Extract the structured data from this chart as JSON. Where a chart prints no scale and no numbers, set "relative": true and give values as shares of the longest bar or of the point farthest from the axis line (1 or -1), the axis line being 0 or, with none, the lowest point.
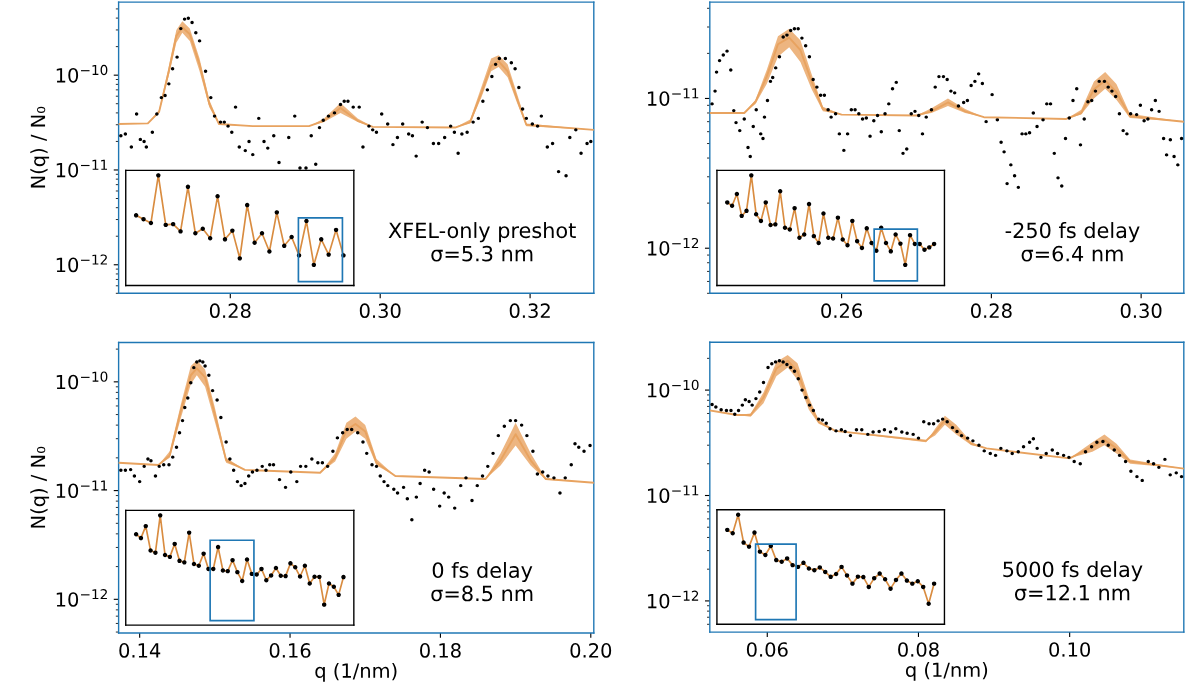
{
  "chart_data": [
    {
      "type": "scatter",
      "ylabel": "N(q) / N₀",
      "log": true,
      "xlim": [
        0.2651,
        0.3285
      ],
      "ylim": [
        5e-13,
        5.9e-10
      ],
      "xticks": [
        0.28,
        {
          "value": 0.3,
          "label": "0.30"
        },
        0.32
      ],
      "yticks": [
        {
          "value": 1e-12,
          "label": "10$^{−12}$"
        },
        {
          "value": 1e-11,
          "label": "10$^{−11}$"
        },
        {
          "value": 1e-10,
          "label": "10$^{−10}$"
        }
      ],
      "annotations": [
        "XFEL-only preshot",
        "σ=5.3 nm"
      ],
      "series": [
        {
          "marker": "circle",
          "color": "#000000",
          "x": [
            0.2654,
            0.266,
            0.2668,
            0.2675,
            0.268,
            0.2685,
            0.2688,
            0.2696,
            0.2702,
            0.2708,
            0.2713,
            0.2718,
            0.2723,
            0.2729,
            0.2734,
            0.2739,
            0.2744,
            0.2749,
            0.2754,
            0.2759,
            0.2767,
            0.2774,
            0.2779,
            0.2787,
            0.2792,
            0.2797,
            0.2802,
            0.2807,
            0.2812,
            0.282,
            0.2825,
            0.283,
            0.2838,
            0.2845,
            0.285,
            0.2858,
            0.2865,
            0.2878,
            0.2886,
            0.2893,
            0.2901,
            0.2908,
            0.2914,
            0.2919,
            0.2924,
            0.2931,
            0.2939,
            0.2947,
            0.2952,
            0.2957,
            0.2964,
            0.2972,
            0.2977,
            0.2985,
            0.299,
            0.2995,
            0.3002,
            0.301,
            0.3017,
            0.3023,
            0.303,
            0.3038,
            0.3043,
            0.3048,
            0.3056,
            0.3063,
            0.3071,
            0.3078,
            0.3086,
            0.3094,
            0.3099,
            0.3104,
            0.3109,
            0.3116,
            0.3124,
            0.3131,
            0.3137,
            0.3143,
            0.3149,
            0.3154,
            0.3159,
            0.3167,
            0.3175,
            0.318,
            0.3185,
            0.319,
            0.3195,
            0.3203,
            0.321,
            0.3215,
            0.3223,
            0.323,
            0.3238,
            0.3248,
            0.3253,
            0.3261,
            0.3268,
            0.3276,
            0.3281
          ],
          "values": [
            2.3e-11,
            2.4e-11,
            1.75e-11,
            3.9e-11,
            2.1e-11,
            2e-11,
            1.75e-11,
            2.5e-11,
            3.9e-11,
            5.8e-11,
            6.1e-11,
            8.1e-11,
            1.17e-10,
            1.55e-10,
            3.1e-10,
            3.9e-10,
            3.98e-10,
            3.6e-10,
            2.8e-10,
            2.3e-10,
            1.1e-10,
            5.8e-11,
            3.7e-11,
            3.2e-11,
            3.2e-11,
            2.9e-11,
            2.5e-11,
            4.6e-11,
            1.75e-11,
            1.6e-11,
            2e-11,
            1.45e-11,
            3.5e-11,
            2e-11,
            1.7e-11,
            2.3e-11,
            1.2e-11,
            2.2e-11,
            3.7e-11,
            1.05e-11,
            1.05e-11,
            2.3e-11,
            1.15e-11,
            2.8e-11,
            3.35e-11,
            3.7e-11,
            4e-11,
            4.9e-11,
            5.3e-11,
            5.3e-11,
            4.6e-11,
            4.6e-11,
            1.75e-11,
            2.9e-11,
            2.65e-11,
            2.5e-11,
            3.9e-11,
            3.05e-11,
            1.85e-11,
            2.2e-11,
            3.05e-11,
            2.4e-11,
            2.3e-11,
            1.4e-11,
            3.2e-11,
            2.8e-11,
            1.9e-11,
            1.9e-11,
            2.2e-11,
            2.9e-11,
            2.5e-11,
            1.5e-11,
            2.4e-11,
            2.5e-11,
            3.2e-11,
            3.5e-11,
            5.3e-11,
            7e-11,
            9.7e-11,
            1.3e-10,
            1.5e-10,
            1.5e-10,
            1.35e-10,
            1.17e-10,
            7.4e-11,
            4.4e-11,
            3.5e-11,
            3.05e-11,
            2.9e-11,
            3.7e-11,
            1.75e-11,
            1.9e-11,
            9.6e-12,
            8.7e-12,
            2.2e-11,
            2.65e-11,
            1.5e-11,
            1.9e-11,
            2e-11
          ]
        },
        {
          "type": "line",
          "color": "#e8a360",
          "x": [
            0.2651,
            0.269,
            0.2705,
            0.2718,
            0.2728,
            0.2736,
            0.2746,
            0.2759,
            0.2772,
            0.2785,
            0.283,
            0.2905,
            0.2925,
            0.2947,
            0.297,
            0.299,
            0.31,
            0.312,
            0.3135,
            0.3148,
            0.3158,
            0.317,
            0.3183,
            0.3195,
            0.3285
          ],
          "values": [
            3.05e-11,
            3.1e-11,
            4.1e-11,
            1.1e-10,
            2.6e-10,
            3.2e-10,
            2.7e-10,
            1.3e-10,
            5e-11,
            3.05e-11,
            2.9e-11,
            2.9e-11,
            3.3e-11,
            4.5e-11,
            3.3e-11,
            2.85e-11,
            2.8e-11,
            3.2e-11,
            6.5e-11,
            1.25e-10,
            1.4e-10,
            1.1e-10,
            5.5e-11,
            3e-11,
            2.65e-11
          ],
          "lower": [
            3.05e-11,
            3.1e-11,
            4e-11,
            1e-10,
            2.2e-10,
            2.8e-10,
            2.3e-10,
            1.1e-10,
            4.6e-11,
            3e-11,
            2.9e-11,
            2.9e-11,
            3.2e-11,
            4e-11,
            3.2e-11,
            2.85e-11,
            2.8e-11,
            3.1e-11,
            5.8e-11,
            1.1e-10,
            1.22e-10,
            9.5e-11,
            5e-11,
            2.9e-11,
            2.65e-11
          ],
          "upper": [
            3.05e-11,
            3.1e-11,
            4.3e-11,
            1.25e-10,
            3e-10,
            3.7e-10,
            3.1e-10,
            1.5e-10,
            5.5e-11,
            3.1e-11,
            2.9e-11,
            2.9e-11,
            3.5e-11,
            5.1e-11,
            3.5e-11,
            2.85e-11,
            2.8e-11,
            3.4e-11,
            7.5e-11,
            1.5e-10,
            1.62e-10,
            1.3e-10,
            6.2e-11,
            3.1e-11,
            2.65e-11
          ]
        }
      ]
    },
    {
      "type": "line",
      "relative": true,
      "tick_labels": false,
      "categories": [
        null,
        null,
        null,
        null,
        null,
        null,
        null,
        null,
        null,
        null,
        null,
        null,
        null,
        null,
        null,
        null,
        null,
        null,
        null,
        null,
        null,
        null,
        null,
        null,
        null,
        null,
        null,
        null,
        null
      ],
      "series": [
        {
          "marker": "circle",
          "color": "#d98c40",
          "values": [
            0.637,
            0.602,
            0.567,
            1,
            0.55,
            0.557,
            0.491,
            0.896,
            0.474,
            0.515,
            0.429,
            0.81,
            0.419,
            0.498,
            0.246,
            0.73,
            0.388,
            0.474,
            0.308,
            0.664,
            0.36,
            0.44,
            0.273,
            0.585,
            0.187,
            0.419,
            0.28,
            0.505,
            0.273
          ]
        }
      ]
    },
    {
      "type": "scatter",
      "log": true,
      "xlim": [
        0.2424,
        0.3057
      ],
      "ylim": [
        5e-13,
        4.4e-11
      ],
      "xticks": [
        0.26,
        0.28,
        {
          "value": 0.3,
          "label": "0.30"
        }
      ],
      "yticks": [
        {
          "value": 1e-12,
          "label": "10$^{−12}$"
        },
        {
          "value": 1e-11,
          "label": "10$^{−11}$"
        }
      ],
      "annotations": [
        "-250 fs delay",
        "σ=6.4 nm"
      ],
      "series": [
        {
          "marker": "circle",
          "color": "#000000",
          "x": [
            0.2427,
            0.2431,
            0.2433,
            0.2437,
            0.2442,
            0.2447,
            0.2452,
            0.2456,
            0.2459,
            0.2464,
            0.247,
            0.2475,
            0.2478,
            0.2482,
            0.2486,
            0.2492,
            0.2495,
            0.2497,
            0.2501,
            0.2505,
            0.2508,
            0.2512,
            0.2517,
            0.2522,
            0.2527,
            0.2532,
            0.2537,
            0.2542,
            0.2547,
            0.2552,
            0.2557,
            0.2562,
            0.2567,
            0.2572,
            0.2577,
            0.2582,
            0.2586,
            0.2592,
            0.2597,
            0.2603,
            0.2608,
            0.2613,
            0.2618,
            0.2623,
            0.2628,
            0.2633,
            0.2638,
            0.2643,
            0.2648,
            0.2653,
            0.2658,
            0.2663,
            0.2668,
            0.2673,
            0.2677,
            0.2682,
            0.2687,
            0.2693,
            0.2698,
            0.2703,
            0.2708,
            0.2713,
            0.272,
            0.2725,
            0.273,
            0.2736,
            0.2741,
            0.2746,
            0.2751,
            0.2756,
            0.2763,
            0.2768,
            0.2773,
            0.2778,
            0.2783,
            0.2788,
            0.2793,
            0.2801,
            0.2808,
            0.2813,
            0.2817,
            0.2821,
            0.2826,
            0.2831,
            0.2836,
            0.2841,
            0.2846,
            0.2851,
            0.2856,
            0.2861,
            0.2869,
            0.2874,
            0.2879,
            0.2884,
            0.2889,
            0.2894,
            0.2899,
            0.2904,
            0.2909,
            0.2914,
            0.2919,
            0.2924,
            0.2929,
            0.2934,
            0.2939,
            0.2944,
            0.2951,
            0.2956,
            0.2961,
            0.2966,
            0.2971,
            0.2976,
            0.2981,
            0.2986,
            0.2994,
            0.2999,
            0.3004,
            0.3009,
            0.3014,
            0.3019,
            0.3024,
            0.303,
            0.3034,
            0.3039,
            0.3044,
            0.3049,
            0.3054
          ],
          "values": [
            9.2e-12,
            1.12e-11,
            1.5e-11,
            1.79e-11,
            1.95e-11,
            2.07e-11,
            1.55e-11,
            8.3e-12,
            6.9e-12,
            6.1e-12,
            7.3e-12,
            4.7e-12,
            4.1e-12,
            6.5e-12,
            8.4e-12,
            5.8e-12,
            5.4e-12,
            7.5e-12,
            9.7e-12,
            1.3e-11,
            1.38e-11,
            1.6e-11,
            1.9e-11,
            2.57e-11,
            2.65e-11,
            2.84e-11,
            2.92e-11,
            2.92e-11,
            2.53e-11,
            2.25e-11,
            1.9e-11,
            1.34e-11,
            1.19e-11,
            1.05e-11,
            1.05e-11,
            8.4e-12,
            7.5e-12,
            7.9e-12,
            5.8e-12,
            4.5e-12,
            5.8e-12,
            8.4e-12,
            8.4e-12,
            7.9e-12,
            7.3e-12,
            7.4e-12,
            5.6e-12,
            7.1e-12,
            7.7e-12,
            6e-12,
            7.9e-12,
            9.2e-12,
            1.16e-11,
            1.28e-11,
            6.1e-12,
            4.3e-12,
            4.6e-12,
            7.9e-12,
            8.2e-12,
            7.7e-12,
            5.8e-12,
            7.5e-12,
            8.4e-12,
            1.19e-11,
            1.4e-11,
            1.4e-11,
            1.34e-11,
            1.12e-11,
            1.09e-11,
            8.9e-12,
            9.4e-12,
            9.7e-12,
            1.22e-11,
            1.3e-11,
            1.46e-11,
            1.26e-11,
            7e-12,
            1.06e-11,
            7.2e-12,
            5.1e-12,
            4.4e-12,
            2.7e-12,
            3.6e-12,
            3.05e-12,
            2.55e-12,
            5.8e-12,
            5.8e-12,
            5.9e-12,
            8e-12,
            6.5e-12,
            7.2e-12,
            9.2e-12,
            9.2e-12,
            4.3e-12,
            2.95e-12,
            2.6e-12,
            5.4e-12,
            7.4e-12,
            9.7e-12,
            1.16e-11,
            4.9e-12,
            7.3e-12,
            9.5e-12,
            9.7e-12,
            1.12e-11,
            1.3e-11,
            1.3e-11,
            1.19e-11,
            1.12e-11,
            1.03e-11,
            7.9e-12,
            6.1e-12,
            5.8e-12,
            7.9e-12,
            7.8e-12,
            9e-12,
            7.1e-12,
            7.3e-12,
            8.4e-12,
            9.7e-12,
            8.2e-12,
            5.4e-12,
            4.2e-12,
            5.3e-12,
            4.1e-12,
            3.6e-12,
            5.4e-12
          ]
        },
        {
          "type": "line",
          "color": "#e8a360",
          "x": [
            0.2424,
            0.247,
            0.2485,
            0.25,
            0.2515,
            0.253,
            0.2545,
            0.256,
            0.2575,
            0.26,
            0.27,
            0.272,
            0.2742,
            0.2765,
            0.279,
            0.29,
            0.292,
            0.2937,
            0.2952,
            0.2967,
            0.2985,
            0.3057
          ],
          "values": [
            8e-12,
            8e-12,
            9.5e-12,
            1.4e-11,
            2.3e-11,
            2.55e-11,
            2.1e-11,
            1.3e-11,
            8.5e-12,
            7.8e-12,
            7.7e-12,
            8.2e-12,
            9.4e-12,
            8.2e-12,
            7.5e-12,
            7.3e-12,
            8e-12,
            1.15e-11,
            1.32e-11,
            1.1e-11,
            7.6e-12,
            7e-12
          ],
          "lower": [
            8e-12,
            8e-12,
            9.2e-12,
            1.25e-11,
            1.9e-11,
            2.2e-11,
            1.75e-11,
            1.15e-11,
            8.2e-12,
            7.8e-12,
            7.7e-12,
            8e-12,
            8.9e-12,
            8e-12,
            7.5e-12,
            7.3e-12,
            7.8e-12,
            1e-11,
            1.16e-11,
            9.8e-12,
            7.4e-12,
            7e-12
          ],
          "upper": [
            8e-12,
            8e-12,
            9.8e-12,
            1.55e-11,
            2.6e-11,
            2.92e-11,
            2.45e-11,
            1.45e-11,
            8.8e-12,
            7.8e-12,
            7.7e-12,
            8.6e-12,
            1e-11,
            8.5e-12,
            7.5e-12,
            7.3e-12,
            8.4e-12,
            1.3e-11,
            1.5e-11,
            1.25e-11,
            7.9e-12,
            7e-12
          ]
        }
      ]
    },
    {
      "type": "line",
      "relative": true,
      "tick_labels": false,
      "categories": [
        null,
        null,
        null,
        null,
        null,
        null,
        null,
        null,
        null,
        null,
        null,
        null,
        null,
        null,
        null,
        null,
        null,
        null,
        null,
        null,
        null,
        null,
        null,
        null,
        null,
        null,
        null,
        null,
        null,
        null,
        null,
        null,
        null,
        null,
        null,
        null,
        null,
        null,
        null,
        null,
        null,
        null,
        null,
        null
      ],
      "series": [
        {
          "marker": "circle",
          "color": "#d98c40",
          "values": [
            0.754,
            0.724,
            0.831,
            0.632,
            0.678,
            1,
            0.647,
            0.586,
            0.754,
            0.549,
            0.555,
            0.856,
            0.524,
            0.509,
            0.702,
            0.433,
            0.463,
            0.739,
            0.448,
            0.386,
            0.654,
            0.433,
            0.426,
            0.616,
            0.417,
            0.365,
            0.586,
            0.402,
            0.341,
            0.519,
            0.386,
            0.315,
            0.524,
            0.386,
            0.31,
            0.463,
            0.38,
            0.187,
            0.457,
            0.377,
            0.377,
            0.325,
            0.346,
            0.377
          ]
        }
      ]
    },
    {
      "type": "scatter",
      "xlabel": "q (1/nm)",
      "ylabel": "N(q) / N₀",
      "log": true,
      "xlim": [
        0.1372,
        0.2004
      ],
      "ylim": [
        4.9e-13,
        2.3e-10
      ],
      "xticks": [
        0.14,
        0.16,
        0.18,
        {
          "value": 0.2,
          "label": "0.20"
        }
      ],
      "yticks": [
        {
          "value": 1e-12,
          "label": "10$^{−12}$"
        },
        {
          "value": 1e-11,
          "label": "10$^{−11}$"
        },
        {
          "value": 1e-10,
          "label": "10$^{−10}$"
        }
      ],
      "annotations": [
        "0 fs delay",
        "σ=8.5 nm"
      ],
      "series": [
        {
          "marker": "circle",
          "color": "#000000",
          "x": [
            0.1375,
            0.1381,
            0.1388,
            0.1393,
            0.14,
            0.1406,
            0.1411,
            0.1415,
            0.1421,
            0.1426,
            0.1432,
            0.1439,
            0.1444,
            0.1449,
            0.1453,
            0.1457,
            0.146,
            0.1464,
            0.1468,
            0.1472,
            0.1476,
            0.148,
            0.1484,
            0.1487,
            0.1492,
            0.1497,
            0.1503,
            0.1508,
            0.1515,
            0.152,
            0.1525,
            0.153,
            0.1535,
            0.154,
            0.1545,
            0.155,
            0.1556,
            0.1563,
            0.1568,
            0.1573,
            0.1578,
            0.1586,
            0.1594,
            0.1601,
            0.1609,
            0.1614,
            0.1621,
            0.1629,
            0.1637,
            0.1643,
            0.165,
            0.1657,
            0.1663,
            0.167,
            0.1676,
            0.1682,
            0.169,
            0.1697,
            0.1702,
            0.1709,
            0.1715,
            0.172,
            0.1725,
            0.173,
            0.1738,
            0.1743,
            0.1751,
            0.1756,
            0.1762,
            0.1768,
            0.1773,
            0.1779,
            0.1785,
            0.1791,
            0.1799,
            0.1805,
            0.1811,
            0.1819,
            0.1827,
            0.1834,
            0.1842,
            0.1849,
            0.1856,
            0.1863,
            0.187,
            0.1877,
            0.1885,
            0.1893,
            0.19,
            0.1908,
            0.1915,
            0.1923,
            0.1929,
            0.1936,
            0.1943,
            0.1951,
            0.1959,
            0.1966,
            0.1974,
            0.1979,
            0.1984,
            0.1991,
            0.1999
          ],
          "values": [
            1.54e-11,
            1.54e-11,
            1.56e-11,
            1.36e-11,
            1.21e-11,
            1.67e-11,
            1.95e-11,
            1.88e-11,
            1.36e-11,
            1.67e-11,
            1.73e-11,
            1.73e-11,
            2.03e-11,
            2.5e-11,
            3.4e-11,
            4.4e-11,
            5.8e-11,
            7.1e-11,
            9.8e-11,
            1.35e-10,
            1.52e-10,
            1.56e-10,
            1.52e-10,
            1.4e-10,
            1.15e-10,
            8.3e-11,
            6.8e-11,
            4.7e-11,
            2.8e-11,
            1.95e-11,
            1.54e-11,
            1.21e-11,
            1.11e-11,
            1.16e-11,
            1.36e-11,
            1.48e-11,
            1.54e-11,
            1.67e-11,
            1.54e-11,
            1.73e-11,
            1.73e-11,
            1.26e-11,
            1.07e-11,
            1.48e-11,
            1.21e-11,
            1.67e-11,
            1.67e-11,
            1.95e-11,
            1.8e-11,
            1.8e-11,
            1.67e-11,
            2.3e-11,
            3.05e-11,
            3.4e-11,
            3.65e-11,
            3.65e-11,
            3.4e-11,
            2.8e-11,
            2.2e-11,
            1.73e-11,
            1.67e-11,
            1.36e-11,
            1.21e-11,
            1.11e-11,
            1.03e-11,
            9.5e-12,
            1.07e-11,
            8.4e-12,
            5.4e-12,
            8.7e-12,
            1.16e-11,
            1.54e-11,
            1.48e-11,
            1.03e-11,
            7.2e-12,
            9.5e-12,
            8.7e-12,
            6.9e-12,
            1.11e-11,
            1.31e-11,
            8.1e-12,
            1.11e-11,
            1.36e-11,
            1.67e-11,
            2.2e-11,
            3.2e-11,
            3.9e-11,
            4.4e-11,
            4.4e-11,
            4e-11,
            3.2e-11,
            2.3e-11,
            1.42e-11,
            1.48e-11,
            1.36e-11,
            1.31e-11,
            9.5e-12,
            1.31e-11,
            1.73e-11,
            2.7e-11,
            2.5e-11,
            2.3e-11,
            2.6e-11
          ]
        },
        {
          "type": "line",
          "color": "#e8a360",
          "x": [
            0.1372,
            0.1425,
            0.144,
            0.1455,
            0.1468,
            0.1476,
            0.1487,
            0.15,
            0.1515,
            0.154,
            0.164,
            0.166,
            0.1675,
            0.1687,
            0.17,
            0.1715,
            0.174,
            0.186,
            0.188,
            0.19,
            0.192,
            0.194,
            0.2004
          ],
          "values": [
            1.8e-11,
            1.72e-11,
            2.1e-11,
            5.5e-11,
            1.15e-10,
            1.33e-10,
            1.1e-10,
            5e-11,
            1.9e-11,
            1.55e-11,
            1.46e-11,
            2e-11,
            3.6e-11,
            4.1e-11,
            3.5e-11,
            1.8e-11,
            1.36e-11,
            1.28e-11,
            1.9e-11,
            3.3e-11,
            1.9e-11,
            1.28e-11,
            1.18e-11
          ],
          "lower": [
            1.8e-11,
            1.72e-11,
            2e-11,
            4.7e-11,
            9.5e-11,
            1.15e-10,
            9e-11,
            4.3e-11,
            1.8e-11,
            1.55e-11,
            1.46e-11,
            1.85e-11,
            3e-11,
            3.5e-11,
            3e-11,
            1.7e-11,
            1.36e-11,
            1.28e-11,
            1.7e-11,
            2.6e-11,
            1.7e-11,
            1.26e-11,
            1.18e-11
          ],
          "upper": [
            1.8e-11,
            1.72e-11,
            2.3e-11,
            6.3e-11,
            1.4e-10,
            1.58e-10,
            1.3e-10,
            5.8e-11,
            2e-11,
            1.55e-11,
            1.46e-11,
            2.2e-11,
            4.2e-11,
            4.8e-11,
            4e-11,
            1.95e-11,
            1.36e-11,
            1.28e-11,
            2.2e-11,
            4.2e-11,
            2.2e-11,
            1.3e-11,
            1.18e-11
          ]
        }
      ]
    },
    {
      "type": "line",
      "relative": true,
      "tick_labels": false,
      "categories": [
        null,
        null,
        null,
        null,
        null,
        null,
        null,
        null,
        null,
        null,
        null,
        null,
        null,
        null,
        null,
        null,
        null,
        null,
        null,
        null,
        null,
        null,
        null,
        null,
        null,
        null,
        null,
        null,
        null,
        null,
        null,
        null,
        null,
        null,
        null,
        null,
        null,
        null,
        null,
        null,
        null,
        null,
        null,
        null
      ],
      "series": [
        {
          "marker": "circle",
          "color": "#d98c40",
          "values": [
            0.828,
            0.793,
            0.902,
            0.68,
            0.66,
            1,
            0.639,
            0.622,
            0.74,
            0.586,
            0.572,
            0.843,
            0.557,
            0.541,
            0.651,
            0.512,
            0.512,
            0.711,
            0.498,
            0.492,
            0.592,
            0.483,
            0.402,
            0.598,
            0.467,
            0.462,
            0.512,
            0.409,
            0.453,
            0.521,
            0.45,
            0.447,
            0.563,
            0.527,
            0.443,
            0.541,
            0.379,
            0.441,
            0.44,
            0.187,
            0.379,
            0.35,
            0.276,
            0.438
          ]
        }
      ]
    },
    {
      "type": "scatter",
      "xlabel": "q (1/nm)",
      "log": true,
      "xlim": [
        0.0524,
        0.1151
      ],
      "ylim": [
        5.06e-13,
        2.84e-10
      ],
      "xticks": [
        0.06,
        0.08,
        {
          "value": 0.1,
          "label": "0.10"
        }
      ],
      "yticks": [
        {
          "value": 1e-12,
          "label": "10$^{−12}$"
        },
        {
          "value": 1e-11,
          "label": "10$^{−11}$"
        },
        {
          "value": 1e-10,
          "label": "10$^{−10}$"
        }
      ],
      "annotations": [
        "5000 fs delay",
        "σ=12.1 nm"
      ],
      "series": [
        {
          "marker": "circle",
          "color": "#000000",
          "x": [
            0.0527,
            0.0532,
            0.0539,
            0.0546,
            0.0552,
            0.0557,
            0.0562,
            0.0567,
            0.0571,
            0.0576,
            0.058,
            0.0585,
            0.059,
            0.0595,
            0.0601,
            0.0606,
            0.0611,
            0.0616,
            0.0621,
            0.0626,
            0.0631,
            0.0636,
            0.0641,
            0.0646,
            0.0651,
            0.0656,
            0.0661,
            0.0668,
            0.0673,
            0.0678,
            0.0683,
            0.0691,
            0.0698,
            0.0703,
            0.071,
            0.0718,
            0.0725,
            0.0733,
            0.074,
            0.0748,
            0.0755,
            0.0763,
            0.077,
            0.0778,
            0.0785,
            0.0793,
            0.08,
            0.0807,
            0.0814,
            0.082,
            0.0826,
            0.0832,
            0.0838,
            0.0845,
            0.0851,
            0.0857,
            0.0865,
            0.0872,
            0.088,
            0.0887,
            0.0895,
            0.0902,
            0.0909,
            0.0917,
            0.0924,
            0.0932,
            0.0939,
            0.0947,
            0.0952,
            0.0957,
            0.0962,
            0.0969,
            0.0977,
            0.0984,
            0.0992,
            0.0999,
            0.1006,
            0.1014,
            0.1021,
            0.1029,
            0.1036,
            0.1044,
            0.1051,
            0.1059,
            0.1066,
            0.1074,
            0.1081,
            0.1089,
            0.1096,
            0.1104,
            0.1111,
            0.1118,
            0.1126,
            0.1133,
            0.1141,
            0.1148
          ],
          "values": [
            7.3e-11,
            6.9e-11,
            6.5e-11,
            6.4e-11,
            6.4e-11,
            5.9e-11,
            6.4e-11,
            7.2e-11,
            8.1e-11,
            7.8e-11,
            7.2e-11,
            8.3e-11,
            9.6e-11,
            1.18e-10,
            1.64e-10,
            1.78e-10,
            1.85e-10,
            1.9e-10,
            1.85e-10,
            1.75e-10,
            1.64e-10,
            1.51e-10,
            1.28e-10,
            1e-10,
            8.5e-11,
            7.2e-11,
            6.4e-11,
            5.3e-11,
            5.2e-11,
            4.85e-11,
            4.3e-11,
            4.1e-11,
            4.2e-11,
            4.05e-11,
            3.7e-11,
            4.2e-11,
            4.2e-11,
            3.8e-11,
            4e-11,
            4.05e-11,
            4.2e-11,
            4e-11,
            4.3e-11,
            4e-11,
            3.9e-11,
            3.8e-11,
            3.5e-11,
            5e-11,
            4.8e-11,
            4.8e-11,
            5.1e-11,
            5.3e-11,
            5e-11,
            4.4e-11,
            4.05e-11,
            3.7e-11,
            3.5e-11,
            3.3e-11,
            3e-11,
            2.65e-11,
            2.5e-11,
            2.4e-11,
            2.8e-11,
            2.65e-11,
            2.5e-11,
            2.6e-11,
            2.9e-11,
            3.2e-11,
            3.45e-11,
            2.8e-11,
            2.3e-11,
            2.5e-11,
            2.7e-11,
            2.5e-11,
            2.4e-11,
            2.3e-11,
            2.1e-11,
            2e-11,
            2.6e-11,
            2.9e-11,
            3.2e-11,
            3.25e-11,
            3e-11,
            2.7e-11,
            2.4e-11,
            2.1e-11,
            1.7e-11,
            1.51e-11,
            1.39e-11,
            2.1e-11,
            2e-11,
            1.85e-11,
            2.2e-11,
            1.57e-11,
            1.64e-11,
            1.51e-11
          ]
        },
        {
          "type": "line",
          "color": "#e8a360",
          "x": [
            0.0524,
            0.056,
            0.0578,
            0.0595,
            0.0612,
            0.0627,
            0.064,
            0.0655,
            0.0668,
            0.069,
            0.081,
            0.0822,
            0.0835,
            0.085,
            0.087,
            0.089,
            0.1,
            0.103,
            0.1046,
            0.1062,
            0.108,
            0.1151
          ],
          "values": [
            6.4e-11,
            5.8e-11,
            5.8e-11,
            8.5e-11,
            1.6e-10,
            1.9e-10,
            1.5e-10,
            7.5e-11,
            5e-11,
            4.1e-11,
            3.3e-11,
            4e-11,
            5.2e-11,
            4.2e-11,
            3.1e-11,
            2.8e-11,
            2.25e-11,
            2.9e-11,
            3.35e-11,
            2.8e-11,
            2.1e-11,
            1.8e-11
          ],
          "lower": [
            6.4e-11,
            5.8e-11,
            5.6e-11,
            7.5e-11,
            1.35e-10,
            1.64e-10,
            1.25e-10,
            6.5e-11,
            4.8e-11,
            4.1e-11,
            3.3e-11,
            3.7e-11,
            4.7e-11,
            3.8e-11,
            3e-11,
            2.8e-11,
            2.25e-11,
            2.6e-11,
            3e-11,
            2.5e-11,
            2e-11,
            1.8e-11
          ],
          "upper": [
            6.4e-11,
            5.8e-11,
            6e-11,
            9.5e-11,
            1.85e-10,
            2.15e-10,
            1.8e-10,
            8.5e-11,
            5.2e-11,
            4.1e-11,
            3.2e-11,
            4.3e-11,
            5.7e-11,
            4.7e-11,
            3.2e-11,
            2.8e-11,
            2.25e-11,
            3.2e-11,
            3.8e-11,
            3.1e-11,
            2.2e-11,
            1.8e-11
          ]
        }
      ]
    },
    {
      "type": "line",
      "relative": true,
      "tick_labels": false,
      "categories": [
        null,
        null,
        null,
        null,
        null,
        null,
        null,
        null,
        null,
        null,
        null,
        null,
        null,
        null,
        null,
        null,
        null,
        null,
        null,
        null,
        null,
        null,
        null,
        null,
        null,
        null,
        null,
        null,
        null,
        null,
        null,
        null,
        null,
        null,
        null,
        null,
        null,
        null,
        null
      ],
      "series": [
        {
          "marker": "circle",
          "color": "#d98c40",
          "values": [
            0.862,
            0.831,
            1,
            0.746,
            0.709,
            0.837,
            0.663,
            0.632,
            0.715,
            0.586,
            0.571,
            0.601,
            0.54,
            0.524,
            0.561,
            0.509,
            0.494,
            0.519,
            0.478,
            0.433,
            0.459,
            0.524,
            0.446,
            0.371,
            0.435,
            0.431,
            0.341,
            0.421,
            0.463,
            0.411,
            0.325,
            0.405,
            0.463,
            0.399,
            0.371,
            0.393,
            0.341,
            0.187,
            0.371
          ]
        }
      ]
    }
  ]
}
